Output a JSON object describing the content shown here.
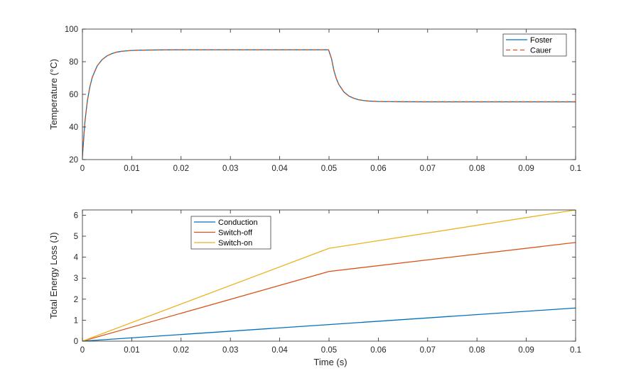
{
  "chart_data": [
    {
      "type": "line",
      "title": "",
      "xlabel": "",
      "ylabel": "Temperature  (°C)",
      "xlim": [
        0,
        0.1
      ],
      "ylim": [
        20,
        100
      ],
      "xticks": [
        0,
        0.01,
        0.02,
        0.03,
        0.04,
        0.05,
        0.06,
        0.07,
        0.08,
        0.09,
        0.1
      ],
      "xtick_labels": [
        "0",
        "0.01",
        "0.02",
        "0.03",
        "0.04",
        "0.05",
        "0.06",
        "0.07",
        "0.08",
        "0.09",
        "0.1"
      ],
      "yticks": [
        20,
        40,
        60,
        80,
        100
      ],
      "ytick_labels": [
        "20",
        "40",
        "60",
        "80",
        "100"
      ],
      "grid": false,
      "legend_position": "top-right",
      "series": [
        {
          "name": "Foster",
          "color": "#0072BD",
          "style": "solid",
          "x": [
            0,
            0.0005,
            0.001,
            0.0015,
            0.002,
            0.003,
            0.004,
            0.005,
            0.006,
            0.007,
            0.008,
            0.01,
            0.012,
            0.015,
            0.02,
            0.03,
            0.04,
            0.0499,
            0.0505,
            0.051,
            0.0515,
            0.052,
            0.053,
            0.054,
            0.055,
            0.056,
            0.057,
            0.058,
            0.06,
            0.062,
            0.065,
            0.07,
            0.08,
            0.09,
            0.1
          ],
          "y": [
            22,
            43,
            56,
            64.5,
            70.5,
            77.5,
            81.3,
            83.6,
            85,
            85.9,
            86.4,
            86.9,
            87.1,
            87.2,
            87.3,
            87.3,
            87.3,
            87.3,
            82,
            74.5,
            69.5,
            66,
            61.5,
            59,
            57.6,
            56.7,
            56.2,
            55.9,
            55.6,
            55.5,
            55.45,
            55.4,
            55.4,
            55.4,
            55.4
          ]
        },
        {
          "name": "Cauer",
          "color": "#D95319",
          "style": "dashed",
          "x": [
            0,
            0.0005,
            0.001,
            0.0015,
            0.002,
            0.003,
            0.004,
            0.005,
            0.006,
            0.007,
            0.008,
            0.01,
            0.012,
            0.015,
            0.02,
            0.03,
            0.04,
            0.0499,
            0.0505,
            0.051,
            0.0515,
            0.052,
            0.053,
            0.054,
            0.055,
            0.056,
            0.057,
            0.058,
            0.06,
            0.062,
            0.065,
            0.07,
            0.08,
            0.09,
            0.1
          ],
          "y": [
            22,
            43,
            56,
            64.5,
            70.5,
            77.5,
            81.3,
            83.6,
            85,
            85.9,
            86.4,
            86.9,
            87.1,
            87.2,
            87.3,
            87.3,
            87.3,
            87.3,
            82,
            74.5,
            69.5,
            66,
            61.5,
            59,
            57.6,
            56.7,
            56.2,
            55.9,
            55.6,
            55.5,
            55.45,
            55.4,
            55.4,
            55.4,
            55.4
          ]
        }
      ]
    },
    {
      "type": "line",
      "title": "",
      "xlabel": "Time (s)",
      "ylabel": "Total Energy Loss (J)",
      "xlim": [
        0,
        0.1
      ],
      "ylim": [
        0,
        6.25
      ],
      "xticks": [
        0,
        0.01,
        0.02,
        0.03,
        0.04,
        0.05,
        0.06,
        0.07,
        0.08,
        0.09,
        0.1
      ],
      "xtick_labels": [
        "0",
        "0.01",
        "0.02",
        "0.03",
        "0.04",
        "0.05",
        "0.06",
        "0.07",
        "0.08",
        "0.09",
        "0.1"
      ],
      "yticks": [
        0,
        1,
        2,
        3,
        4,
        5,
        6
      ],
      "ytick_labels": [
        "0",
        "1",
        "2",
        "3",
        "4",
        "5",
        "6"
      ],
      "grid": false,
      "legend_position": "top-left",
      "series": [
        {
          "name": "Conduction",
          "color": "#0072BD",
          "style": "solid",
          "x": [
            0,
            0.05,
            0.1
          ],
          "y": [
            0,
            0.79,
            1.58
          ]
        },
        {
          "name": "Switch-off",
          "color": "#D95319",
          "style": "solid",
          "x": [
            0,
            0.05,
            0.1
          ],
          "y": [
            0,
            3.32,
            4.7
          ]
        },
        {
          "name": "Switch-on",
          "color": "#EDB120",
          "style": "solid",
          "x": [
            0,
            0.05,
            0.1
          ],
          "y": [
            0,
            4.42,
            6.25
          ]
        }
      ]
    }
  ]
}
